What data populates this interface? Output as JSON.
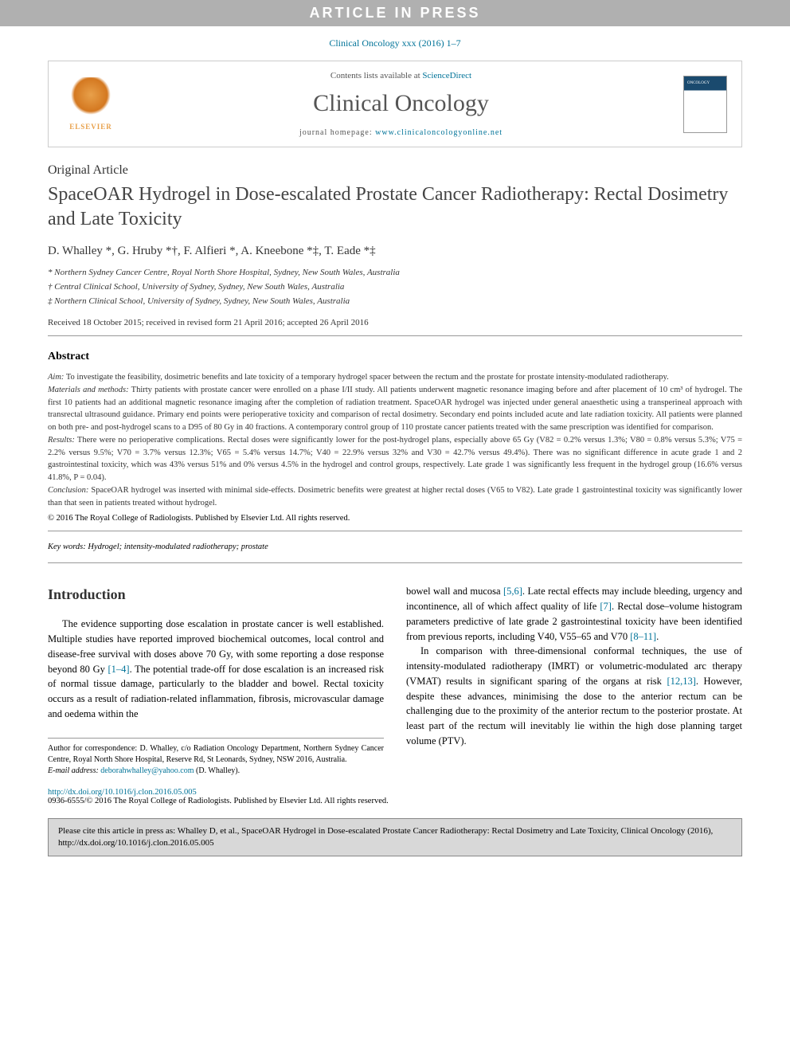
{
  "banner": {
    "text": "ARTICLE IN PRESS"
  },
  "citation_top": "Clinical Oncology xxx (2016) 1–7",
  "header": {
    "contents_prefix": "Contents lists available at ",
    "contents_link": "ScienceDirect",
    "journal": "Clinical Oncology",
    "homepage_prefix": "journal homepage: ",
    "homepage_link": "www.clinicaloncologyonline.net",
    "elsevier": "ELSEVIER"
  },
  "article": {
    "type": "Original Article",
    "title": "SpaceOAR Hydrogel in Dose-escalated Prostate Cancer Radiotherapy: Rectal Dosimetry and Late Toxicity",
    "authors": "D. Whalley *, G. Hruby *†, F. Alfieri *, A. Kneebone *‡, T. Eade *‡",
    "affiliations": {
      "a1": "* Northern Sydney Cancer Centre, Royal North Shore Hospital, Sydney, New South Wales, Australia",
      "a2": "† Central Clinical School, University of Sydney, Sydney, New South Wales, Australia",
      "a3": "‡ Northern Clinical School, University of Sydney, Sydney, New South Wales, Australia"
    },
    "dates": "Received 18 October 2015; received in revised form 21 April 2016; accepted 26 April 2016"
  },
  "abstract": {
    "heading": "Abstract",
    "aim_label": "Aim:",
    "aim": " To investigate the feasibility, dosimetric benefits and late toxicity of a temporary hydrogel spacer between the rectum and the prostate for prostate intensity-modulated radiotherapy.",
    "methods_label": "Materials and methods:",
    "methods": " Thirty patients with prostate cancer were enrolled on a phase I/II study. All patients underwent magnetic resonance imaging before and after placement of 10 cm³ of hydrogel. The first 10 patients had an additional magnetic resonance imaging after the completion of radiation treatment. SpaceOAR hydrogel was injected under general anaesthetic using a transperineal approach with transrectal ultrasound guidance. Primary end points were perioperative toxicity and comparison of rectal dosimetry. Secondary end points included acute and late radiation toxicity. All patients were planned on both pre- and post-hydrogel scans to a D95 of 80 Gy in 40 fractions. A contemporary control group of 110 prostate cancer patients treated with the same prescription was identified for comparison.",
    "results_label": "Results:",
    "results": " There were no perioperative complications. Rectal doses were significantly lower for the post-hydrogel plans, especially above 65 Gy (V82 = 0.2% versus 1.3%; V80 = 0.8% versus 5.3%; V75 = 2.2% versus 9.5%; V70 = 3.7% versus 12.3%; V65 = 5.4% versus 14.7%; V40 = 22.9% versus 32% and V30 = 42.7% versus 49.4%). There was no significant difference in acute grade 1 and 2 gastrointestinal toxicity, which was 43% versus 51% and 0% versus 4.5% in the hydrogel and control groups, respectively. Late grade 1 was significantly less frequent in the hydrogel group (16.6% versus 41.8%, P = 0.04).",
    "conclusion_label": "Conclusion:",
    "conclusion": " SpaceOAR hydrogel was inserted with minimal side-effects. Dosimetric benefits were greatest at higher rectal doses (V65 to V82). Late grade 1 gastrointestinal toxicity was significantly lower than that seen in patients treated without hydrogel.",
    "copyright": "© 2016 The Royal College of Radiologists. Published by Elsevier Ltd. All rights reserved.",
    "keywords_label": "Key words:",
    "keywords": " Hydrogel; intensity-modulated radiotherapy; prostate"
  },
  "intro": {
    "heading": "Introduction",
    "col1_p1_a": "The evidence supporting dose escalation in prostate cancer is well established. Multiple studies have reported improved biochemical outcomes, local control and disease-free survival with doses above 70 Gy, with some reporting a dose response beyond 80 Gy ",
    "col1_ref1": "[1–4]",
    "col1_p1_b": ". The potential trade-off for dose escalation is an increased risk of normal tissue damage, particularly to the bladder and bowel. Rectal toxicity occurs as a result of radiation-related inflammation, fibrosis, microvascular damage and oedema within the",
    "col2_p1_a": "bowel wall and mucosa ",
    "col2_ref1": "[5,6]",
    "col2_p1_b": ". Late rectal effects may include bleeding, urgency and incontinence, all of which affect quality of life ",
    "col2_ref2": "[7]",
    "col2_p1_c": ". Rectal dose–volume histogram parameters predictive of late grade 2 gastrointestinal toxicity have been identified from previous reports, including V40, V55–65 and V70 ",
    "col2_ref3": "[8–11]",
    "col2_p1_d": ".",
    "col2_p2_a": "In comparison with three-dimensional conformal techniques, the use of intensity-modulated radiotherapy (IMRT) or volumetric-modulated arc therapy (VMAT) results in significant sparing of the organs at risk ",
    "col2_ref4": "[12,13]",
    "col2_p2_b": ". However, despite these advances, minimising the dose to the anterior rectum can be challenging due to the proximity of the anterior rectum to the posterior prostate. At least part of the rectum will inevitably lie within the high dose planning target volume (PTV)."
  },
  "correspondence": {
    "author_line": "Author for correspondence: D. Whalley, c/o Radiation Oncology Department, Northern Sydney Cancer Centre, Royal North Shore Hospital, Reserve Rd, St Leonards, Sydney, NSW 2016, Australia.",
    "email_label": "E-mail address: ",
    "email": "deborahwhalley@yahoo.com",
    "email_suffix": " (D. Whalley)."
  },
  "footer": {
    "doi": "http://dx.doi.org/10.1016/j.clon.2016.05.005",
    "issn": "0936-6555/© 2016 The Royal College of Radiologists. Published by Elsevier Ltd. All rights reserved."
  },
  "cite_box": {
    "text": "Please cite this article in press as: Whalley D, et al., SpaceOAR Hydrogel in Dose-escalated Prostate Cancer Radiotherapy: Rectal Dosimetry and Late Toxicity, Clinical Oncology (2016), http://dx.doi.org/10.1016/j.clon.2016.05.005"
  }
}
